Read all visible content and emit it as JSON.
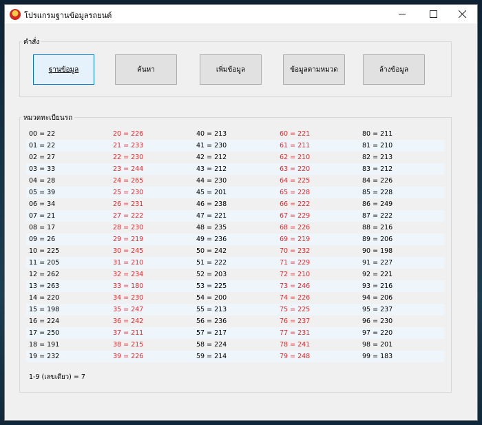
{
  "window": {
    "title": "โปรแกรมฐานข้อมูลรถยนต์"
  },
  "commands": {
    "group_label": "คำสั่ง",
    "buttons": [
      {
        "label": "ฐานข้อมูล"
      },
      {
        "label": "ค้นหา"
      },
      {
        "label": "เพิ่มข้อมูล"
      },
      {
        "label": "ข้อมูลตามหมวด"
      },
      {
        "label": "ล้างข้อมูล"
      }
    ]
  },
  "categories": {
    "group_label": "หมวดทะเบียนรถ",
    "rows": [
      [
        "00 = 22",
        "20 = 226",
        "40 = 213",
        "60 = 221",
        "80 = 211"
      ],
      [
        "01 = 22",
        "21 = 233",
        "41 = 230",
        "61 = 211",
        "81 = 210"
      ],
      [
        "02 = 27",
        "22 = 230",
        "42 = 212",
        "62 = 210",
        "82 = 213"
      ],
      [
        "03 = 33",
        "23 = 244",
        "43 = 212",
        "63 = 220",
        "83 = 212"
      ],
      [
        "04 = 28",
        "24 = 265",
        "44 = 230",
        "64 = 225",
        "84 = 226"
      ],
      [
        "05 = 39",
        "25 = 230",
        "45 = 201",
        "65 = 228",
        "85 = 228"
      ],
      [
        "06 = 34",
        "26 = 231",
        "46 = 238",
        "66 = 222",
        "86 = 249"
      ],
      [
        "07 = 21",
        "27 = 222",
        "47 = 221",
        "67 = 229",
        "87 = 222"
      ],
      [
        "08 = 17",
        "28 = 230",
        "48 = 235",
        "68 = 226",
        "88 = 216"
      ],
      [
        "09 = 26",
        "29 = 219",
        "49 = 236",
        "69 = 219",
        "89 = 206"
      ],
      [
        "10 = 225",
        "30 = 245",
        "50 = 242",
        "70 = 232",
        "90 = 198"
      ],
      [
        "11 = 205",
        "31 = 210",
        "51 = 222",
        "71 = 229",
        "91 = 227"
      ],
      [
        "12 = 262",
        "32 = 234",
        "52 = 203",
        "72 = 210",
        "92 = 221"
      ],
      [
        "13 = 263",
        "33 = 180",
        "53 = 225",
        "73 = 246",
        "93 = 216"
      ],
      [
        "14 = 220",
        "34 = 230",
        "54 = 200",
        "74 = 226",
        "94 = 206"
      ],
      [
        "15 = 198",
        "35 = 247",
        "55 = 213",
        "75 = 225",
        "95 = 237"
      ],
      [
        "16 = 224",
        "36 = 242",
        "56 = 236",
        "76 = 237",
        "96 = 230"
      ],
      [
        "17 = 250",
        "37 = 211",
        "57 = 217",
        "77 = 231",
        "97 = 220"
      ],
      [
        "18 = 191",
        "38 = 215",
        "58 = 224",
        "78 = 241",
        "98 = 201"
      ],
      [
        "19 = 232",
        "39 = 226",
        "59 = 214",
        "79 = 248",
        "99 = 183"
      ]
    ],
    "footer": "1-9 (เลขเดียว) = 7"
  },
  "colors": {
    "red_column": "#e8262b",
    "accent": "#0078d7"
  }
}
